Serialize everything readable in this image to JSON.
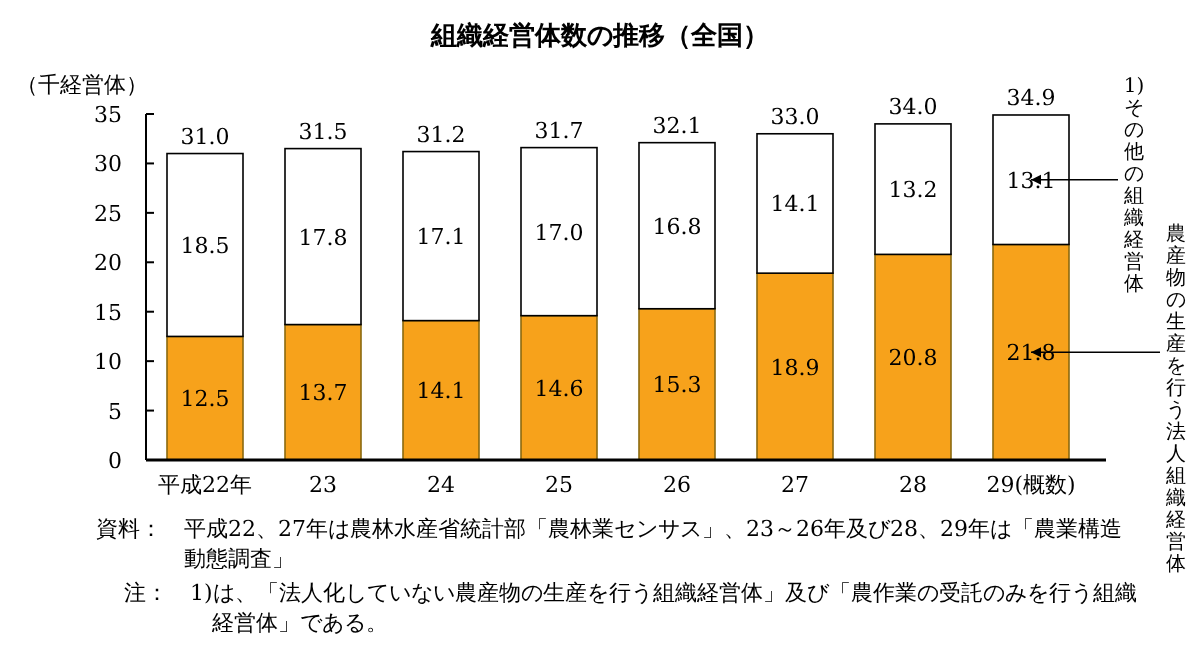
{
  "chart_data": {
    "type": "bar",
    "stacked": true,
    "title": "組織経営体数の推移（全国）",
    "ylabel": "（千経営体）",
    "categories": [
      "平成22年",
      "23",
      "24",
      "25",
      "26",
      "27",
      "28",
      "29(概数)"
    ],
    "series": [
      {
        "name": "農産物の生産を行う法人組織経営体",
        "color": "#f7a21b",
        "values": [
          12.5,
          13.7,
          14.1,
          14.6,
          15.3,
          18.9,
          20.8,
          21.8
        ],
        "value_labels": [
          "12.5",
          "13.7",
          "14.1",
          "14.6",
          "15.3",
          "18.9",
          "20.8",
          "21.8"
        ]
      },
      {
        "name": "1)その他の組織経営体",
        "color": "#ffffff",
        "values": [
          18.5,
          17.8,
          17.1,
          17.0,
          16.8,
          14.1,
          13.2,
          13.1
        ],
        "value_labels": [
          "18.5",
          "17.8",
          "17.1",
          "17.0",
          "16.8",
          "14.1",
          "13.2",
          "13.1"
        ]
      }
    ],
    "totals": [
      "31.0",
      "31.5",
      "31.2",
      "31.7",
      "32.1",
      "33.0",
      "34.0",
      "34.9"
    ],
    "ylim": [
      0,
      35
    ],
    "yticks": [
      0,
      5,
      10,
      15,
      20,
      25,
      30,
      35
    ],
    "annotations": [
      "資料：　平成22、27年は農林水産省統計部「農林業センサス」、23～26年及び28、29年は「農業構造動態調査」",
      "注：　1)は、「法人化していない農産物の生産を行う組織経営体」及び「農作業の受託のみを行う組織経営体」である。"
    ]
  }
}
